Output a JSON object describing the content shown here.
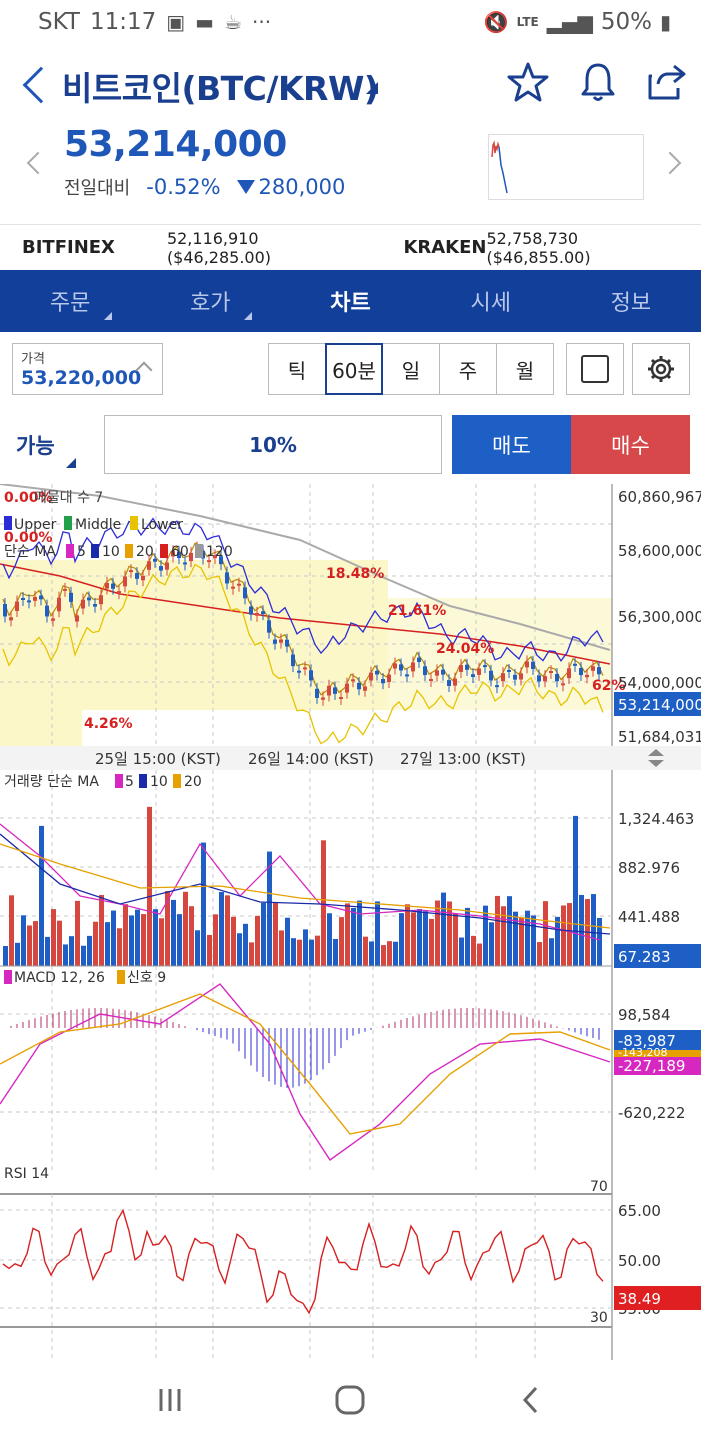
{
  "status_bar": {
    "carrier": "SKT",
    "time": "11:17",
    "battery": "50%",
    "network": "LTE"
  },
  "header": {
    "title": "비트코인(BTC/KRW)"
  },
  "quote": {
    "price": "53,214,000",
    "change_label": "전일대비",
    "change_pct": "-0.52%",
    "change_amt": "280,000"
  },
  "exchanges": [
    {
      "name": "BITFINEX",
      "value": "52,116,910 ($46,285.00)"
    },
    {
      "name": "KRAKEN",
      "value": "52,758,730 ($46,855.00)"
    }
  ],
  "tabs": [
    {
      "label": "주문",
      "has_corner": true
    },
    {
      "label": "호가",
      "has_corner": true
    },
    {
      "label": "차트",
      "active": true
    },
    {
      "label": "시세"
    },
    {
      "label": "정보"
    }
  ],
  "controls": {
    "price_label": "가격",
    "price_value": "53,220,000",
    "intervals": [
      "틱",
      "60분",
      "일",
      "주",
      "월"
    ],
    "active_interval": "60분",
    "available_label": "가능",
    "ratio": "10%",
    "sell_label": "매도",
    "buy_label": "매수"
  },
  "colors": {
    "brand_blue": "#123f9a",
    "price_blue": "#1f57b8",
    "sell": "#1d5fc5",
    "buy": "#d6484a",
    "up_candle": "#d6483f",
    "down_candle": "#1f5fc5"
  },
  "chart_data": [
    {
      "type": "candlestick",
      "panel": "price",
      "legend": {
        "upper": "Upper",
        "middle": "Middle",
        "lower": "Lower",
        "ma_label": "단순 MA",
        "ma_periods": [
          "5",
          "10",
          "20",
          "60",
          "120"
        ],
        "overlay_top": "0.00%",
        "overlay_prefix": "매물대 수 7"
      },
      "y_ticks": [
        "60,860,967",
        "58,600,000",
        "56,300,000",
        "54,000,000",
        "51,684,031"
      ],
      "current_value": "53,214,000",
      "x_ticks": [
        "25일 15:00 (KST)",
        "26일 14:00 (KST)",
        "27일 13:00 (KST)"
      ],
      "volume_profile_labels": [
        "18.48%",
        "21.61%",
        "24.04%",
        "4.26%",
        "62%"
      ],
      "ylim": [
        51684031,
        60860967
      ]
    },
    {
      "type": "bar",
      "panel": "volume",
      "title": "거래량 단순 MA",
      "ma_periods": [
        "5",
        "10",
        "20"
      ],
      "y_ticks": [
        "1,324.463",
        "882.976",
        "441.488"
      ],
      "current_value": "67.283"
    },
    {
      "type": "bar",
      "panel": "macd",
      "title": "MACD 12, 26",
      "signal_label": "신호 9",
      "y_ticks": [
        "98,584",
        "-620,222"
      ],
      "current_values": [
        "-83,987",
        "-143,208",
        "-227,189"
      ]
    },
    {
      "type": "line",
      "panel": "rsi",
      "title": "RSI 14",
      "y_ticks": [
        "65.00",
        "50.00",
        "35.00"
      ],
      "levels": [
        "70",
        "30"
      ],
      "current_value": "38.49"
    }
  ]
}
